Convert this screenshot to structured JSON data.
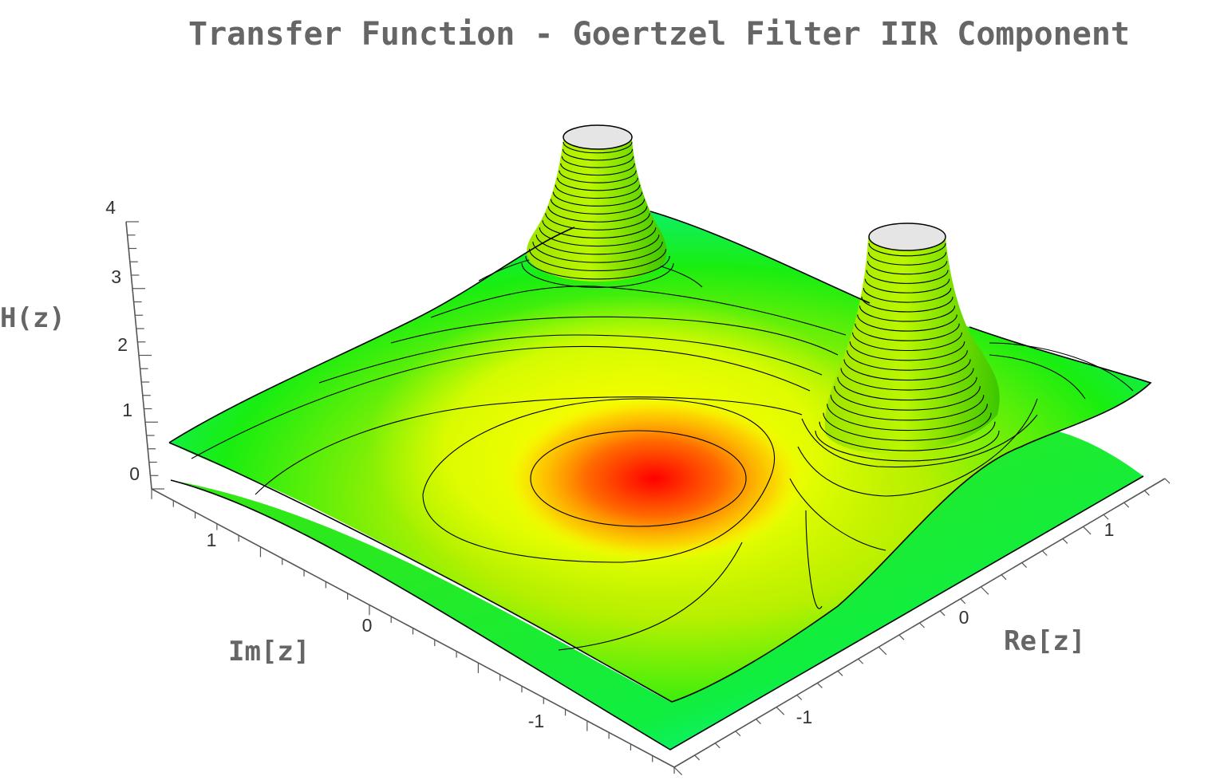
{
  "chart_data": {
    "type": "surface3d",
    "title": "Transfer Function - Goertzel Filter IIR Component",
    "xlabel": "Re[z]",
    "ylabel": "Im[z]",
    "zlabel": "H(z)",
    "x_ticks": [
      "-1",
      "0",
      "1"
    ],
    "y_ticks": [
      "1",
      "0",
      "-1"
    ],
    "z_ticks": [
      "4",
      "3",
      "2",
      "1",
      "0"
    ],
    "z_range": [
      0,
      4
    ],
    "surface": "|H(z)| of the Goertzel IIR stage, two poles on the unit circle (clipped peaks), zero-level minimum near origin",
    "poles": [
      {
        "re": -0.45,
        "im": 0.9
      },
      {
        "re": 0.45,
        "im": 0.9
      }
    ],
    "colors": {
      "low": "#00ffff",
      "mid": "#00ee00",
      "high": "#ffff00",
      "peak": "#ff0000",
      "clip_cap": "#e5e5e5"
    }
  }
}
